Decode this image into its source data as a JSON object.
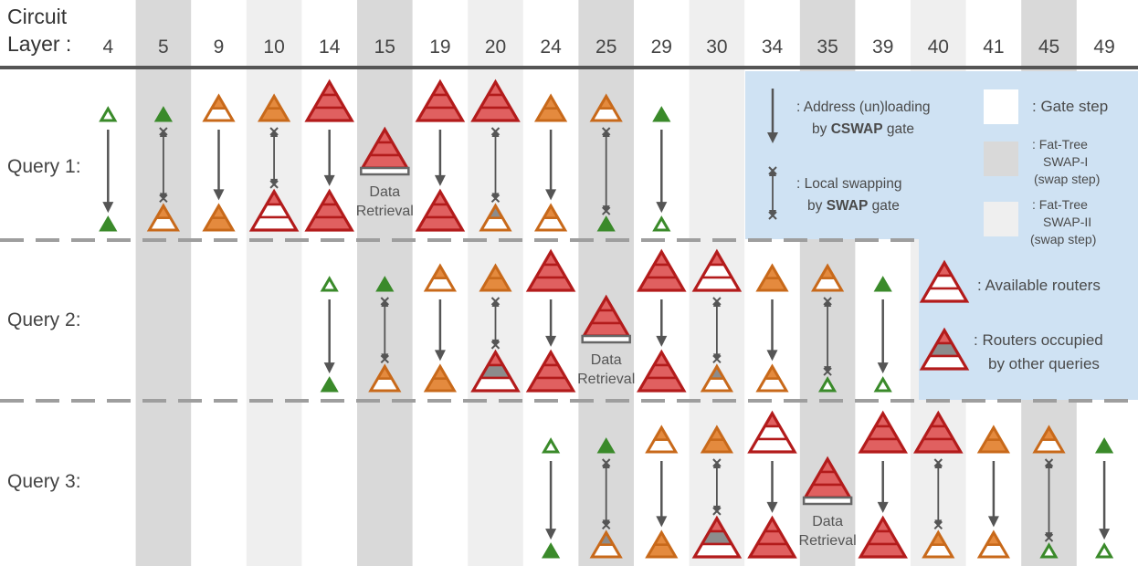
{
  "header": {
    "line1": "Circuit",
    "line2": "Layer :"
  },
  "colors": {
    "gate_col": "#ffffff",
    "swap1_col": "#d9d9d9",
    "swap2_col": "#efefef",
    "legend_bg": "#cfe2f3",
    "red": "#b31b1b",
    "red_fill": "#e06060",
    "orange": "#c8691a",
    "orange_fill": "#e48a3e",
    "green": "#3a8a2a",
    "gray": "#555555",
    "occupied": "#8c8c8c"
  },
  "layers": [
    {
      "label": "4",
      "kind": "gate"
    },
    {
      "label": "5",
      "kind": "swap1"
    },
    {
      "label": "9",
      "kind": "gate"
    },
    {
      "label": "10",
      "kind": "swap2"
    },
    {
      "label": "14",
      "kind": "gate"
    },
    {
      "label": "15",
      "kind": "swap1"
    },
    {
      "label": "19",
      "kind": "gate"
    },
    {
      "label": "20",
      "kind": "swap2"
    },
    {
      "label": "24",
      "kind": "gate"
    },
    {
      "label": "25",
      "kind": "swap1"
    },
    {
      "label": "29",
      "kind": "gate"
    },
    {
      "label": "30",
      "kind": "swap2"
    },
    {
      "label": "34",
      "kind": "gate"
    },
    {
      "label": "35",
      "kind": "swap1"
    },
    {
      "label": "39",
      "kind": "gate"
    },
    {
      "label": "40",
      "kind": "swap2"
    },
    {
      "label": "41",
      "kind": "gate"
    },
    {
      "label": "45",
      "kind": "swap1"
    },
    {
      "label": "49",
      "kind": "gate"
    }
  ],
  "queries": [
    {
      "label": "Query 1:",
      "steps": [
        {
          "col": 0,
          "type": "cswap",
          "top": "g",
          "bottom": "gf"
        },
        {
          "col": 1,
          "type": "swap",
          "top": "gf",
          "bottom": "o"
        },
        {
          "col": 2,
          "type": "cswap",
          "top": "o",
          "bottom": "of"
        },
        {
          "col": 3,
          "type": "swap",
          "top": "of",
          "bottom": "r"
        },
        {
          "col": 4,
          "type": "cswap",
          "top": "rf",
          "bottom": "rf"
        },
        {
          "col": 5,
          "type": "retrieval",
          "label_line1": "Data",
          "label_line2": "Retrieval"
        },
        {
          "col": 6,
          "type": "cswap",
          "top": "rf",
          "bottom": "rf"
        },
        {
          "col": 7,
          "type": "swap",
          "top": "rf",
          "bottom": "oo"
        },
        {
          "col": 8,
          "type": "cswap",
          "top": "of",
          "bottom": "o"
        },
        {
          "col": 9,
          "type": "swap",
          "top": "o",
          "bottom": "gg"
        },
        {
          "col": 10,
          "type": "cswap",
          "top": "gf",
          "bottom": "g"
        }
      ]
    },
    {
      "label": "Query 2:",
      "steps": [
        {
          "col": 4,
          "type": "cswap",
          "top": "g",
          "bottom": "gf"
        },
        {
          "col": 5,
          "type": "swap",
          "top": "gf",
          "bottom": "o"
        },
        {
          "col": 6,
          "type": "cswap",
          "top": "o",
          "bottom": "of"
        },
        {
          "col": 7,
          "type": "swap",
          "top": "of",
          "bottom": "ro"
        },
        {
          "col": 8,
          "type": "cswap",
          "top": "rf",
          "bottom": "rf"
        },
        {
          "col": 9,
          "type": "retrieval",
          "label_line1": "Data",
          "label_line2": "Retrieval"
        },
        {
          "col": 10,
          "type": "cswap",
          "top": "rf",
          "bottom": "rf"
        },
        {
          "col": 11,
          "type": "swap",
          "top": "r",
          "bottom": "oo"
        },
        {
          "col": 12,
          "type": "cswap",
          "top": "of",
          "bottom": "o"
        },
        {
          "col": 13,
          "type": "swap",
          "top": "o",
          "bottom": "g"
        },
        {
          "col": 14,
          "type": "cswap",
          "top": "gf",
          "bottom": "g"
        }
      ]
    },
    {
      "label": "Query 3:",
      "steps": [
        {
          "col": 8,
          "type": "cswap",
          "top": "g",
          "bottom": "gf"
        },
        {
          "col": 9,
          "type": "swap",
          "top": "gf",
          "bottom": "oo"
        },
        {
          "col": 10,
          "type": "cswap",
          "top": "o",
          "bottom": "of"
        },
        {
          "col": 11,
          "type": "swap",
          "top": "of",
          "bottom": "ro"
        },
        {
          "col": 12,
          "type": "cswap",
          "top": "r",
          "bottom": "rf"
        },
        {
          "col": 13,
          "type": "retrieval",
          "label_line1": "Data",
          "label_line2": "Retrieval"
        },
        {
          "col": 14,
          "type": "cswap",
          "top": "rf",
          "bottom": "rf"
        },
        {
          "col": 15,
          "type": "swap",
          "top": "rf",
          "bottom": "o"
        },
        {
          "col": 16,
          "type": "cswap",
          "top": "of",
          "bottom": "o"
        },
        {
          "col": 17,
          "type": "swap",
          "top": "o",
          "bottom": "g"
        },
        {
          "col": 18,
          "type": "cswap",
          "top": "gf",
          "bottom": "g"
        }
      ]
    }
  ],
  "legend": {
    "cswap_line1": ": Address (un)loading",
    "cswap_line2_pre": "by ",
    "cswap_line2_bold": "CSWAP",
    "cswap_line2_post": " gate",
    "swap_line1": ": Local swapping",
    "swap_line2_pre": "by ",
    "swap_line2_bold": "SWAP",
    "swap_line2_post": " gate",
    "gate_step": ": Gate step",
    "swap1_line1": ": Fat-Tree",
    "swap1_line2": "SWAP-I",
    "swap1_line3": "(swap step)",
    "swap2_line1": ": Fat-Tree",
    "swap2_line2": "SWAP-II",
    "swap2_line3": "(swap step)",
    "available": ": Available routers",
    "occupied_line1": ": Routers occupied",
    "occupied_line2": "by other queries"
  }
}
